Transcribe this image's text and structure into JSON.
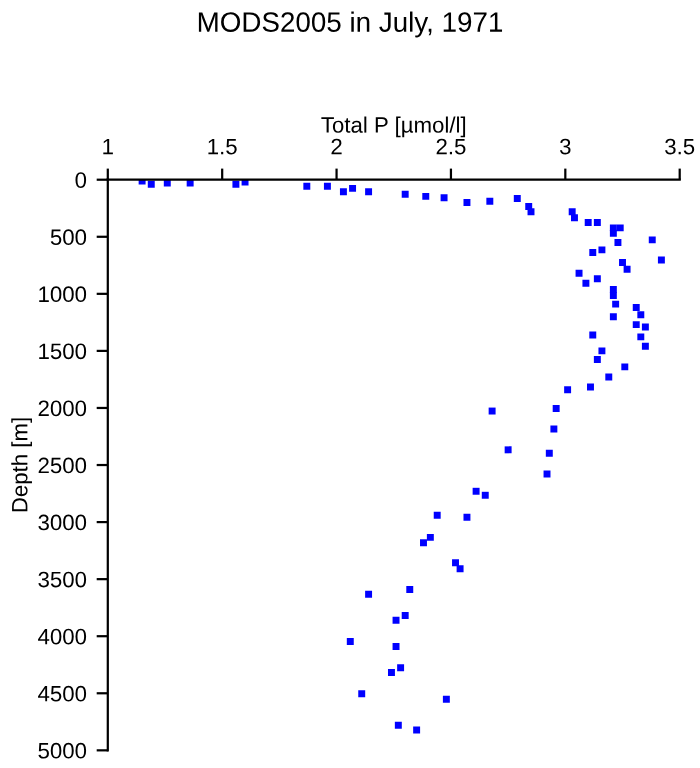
{
  "chart_data": {
    "type": "scatter",
    "title": "MODS2005 in July, 1971",
    "xlabel": "Total P [µmol/l]",
    "ylabel": "Depth [m]",
    "x": [
      1.15,
      1.19,
      1.26,
      1.36,
      1.56,
      1.6,
      1.87,
      1.96,
      2.03,
      2.07,
      2.14,
      2.3,
      2.39,
      2.47,
      2.57,
      2.67,
      2.79,
      2.84,
      2.85,
      3.03,
      3.04,
      3.1,
      3.14,
      3.21,
      3.24,
      3.21,
      3.23,
      3.38,
      3.42,
      3.12,
      3.16,
      3.25,
      3.27,
      3.06,
      3.09,
      3.14,
      3.21,
      3.21,
      3.22,
      3.21,
      3.31,
      3.33,
      3.31,
      3.35,
      3.33,
      3.35,
      3.12,
      3.16,
      3.14,
      3.19,
      3.26,
      3.11,
      3.01,
      2.96,
      2.68,
      2.95,
      2.93,
      2.75,
      2.92,
      2.61,
      2.65,
      2.44,
      2.57,
      2.41,
      2.38,
      2.52,
      2.54,
      2.32,
      2.14,
      2.3,
      2.26,
      2.06,
      2.26,
      2.28,
      2.24,
      2.11,
      2.48,
      2.27,
      2.35
    ],
    "series": [
      {
        "color": "#0000ff",
        "values": [
          12,
          40,
          30,
          30,
          40,
          20,
          58,
          58,
          105,
          76,
          105,
          128,
          146,
          158,
          199,
          188,
          164,
          234,
          281,
          281,
          334,
          375,
          375,
          422,
          422,
          469,
          550,
          527,
          703,
          638,
          615,
          726,
          785,
          820,
          908,
          867,
          961,
          1014,
          1090,
          1200,
          1120,
          1183,
          1270,
          1290,
          1377,
          1459,
          1360,
          1500,
          1575,
          1728,
          1640,
          1816,
          1840,
          2004,
          2027,
          2185,
          2396,
          2367,
          2578,
          2730,
          2765,
          2940,
          2958,
          3134,
          3181,
          3357,
          3409,
          3590,
          3632,
          3819,
          3860,
          4047,
          4090,
          4276,
          4318,
          4505,
          4552,
          4780,
          4821
        ]
      }
    ],
    "xlim": [
      1,
      3.5
    ],
    "xticks": [
      1,
      1.5,
      2,
      2.5,
      3,
      3.5
    ],
    "ylim": [
      5000,
      0
    ],
    "yticks": [
      0,
      500,
      1000,
      1500,
      2000,
      2500,
      3000,
      3500,
      4000,
      4500,
      5000
    ],
    "marker": "square",
    "grid": false,
    "legend": false
  }
}
